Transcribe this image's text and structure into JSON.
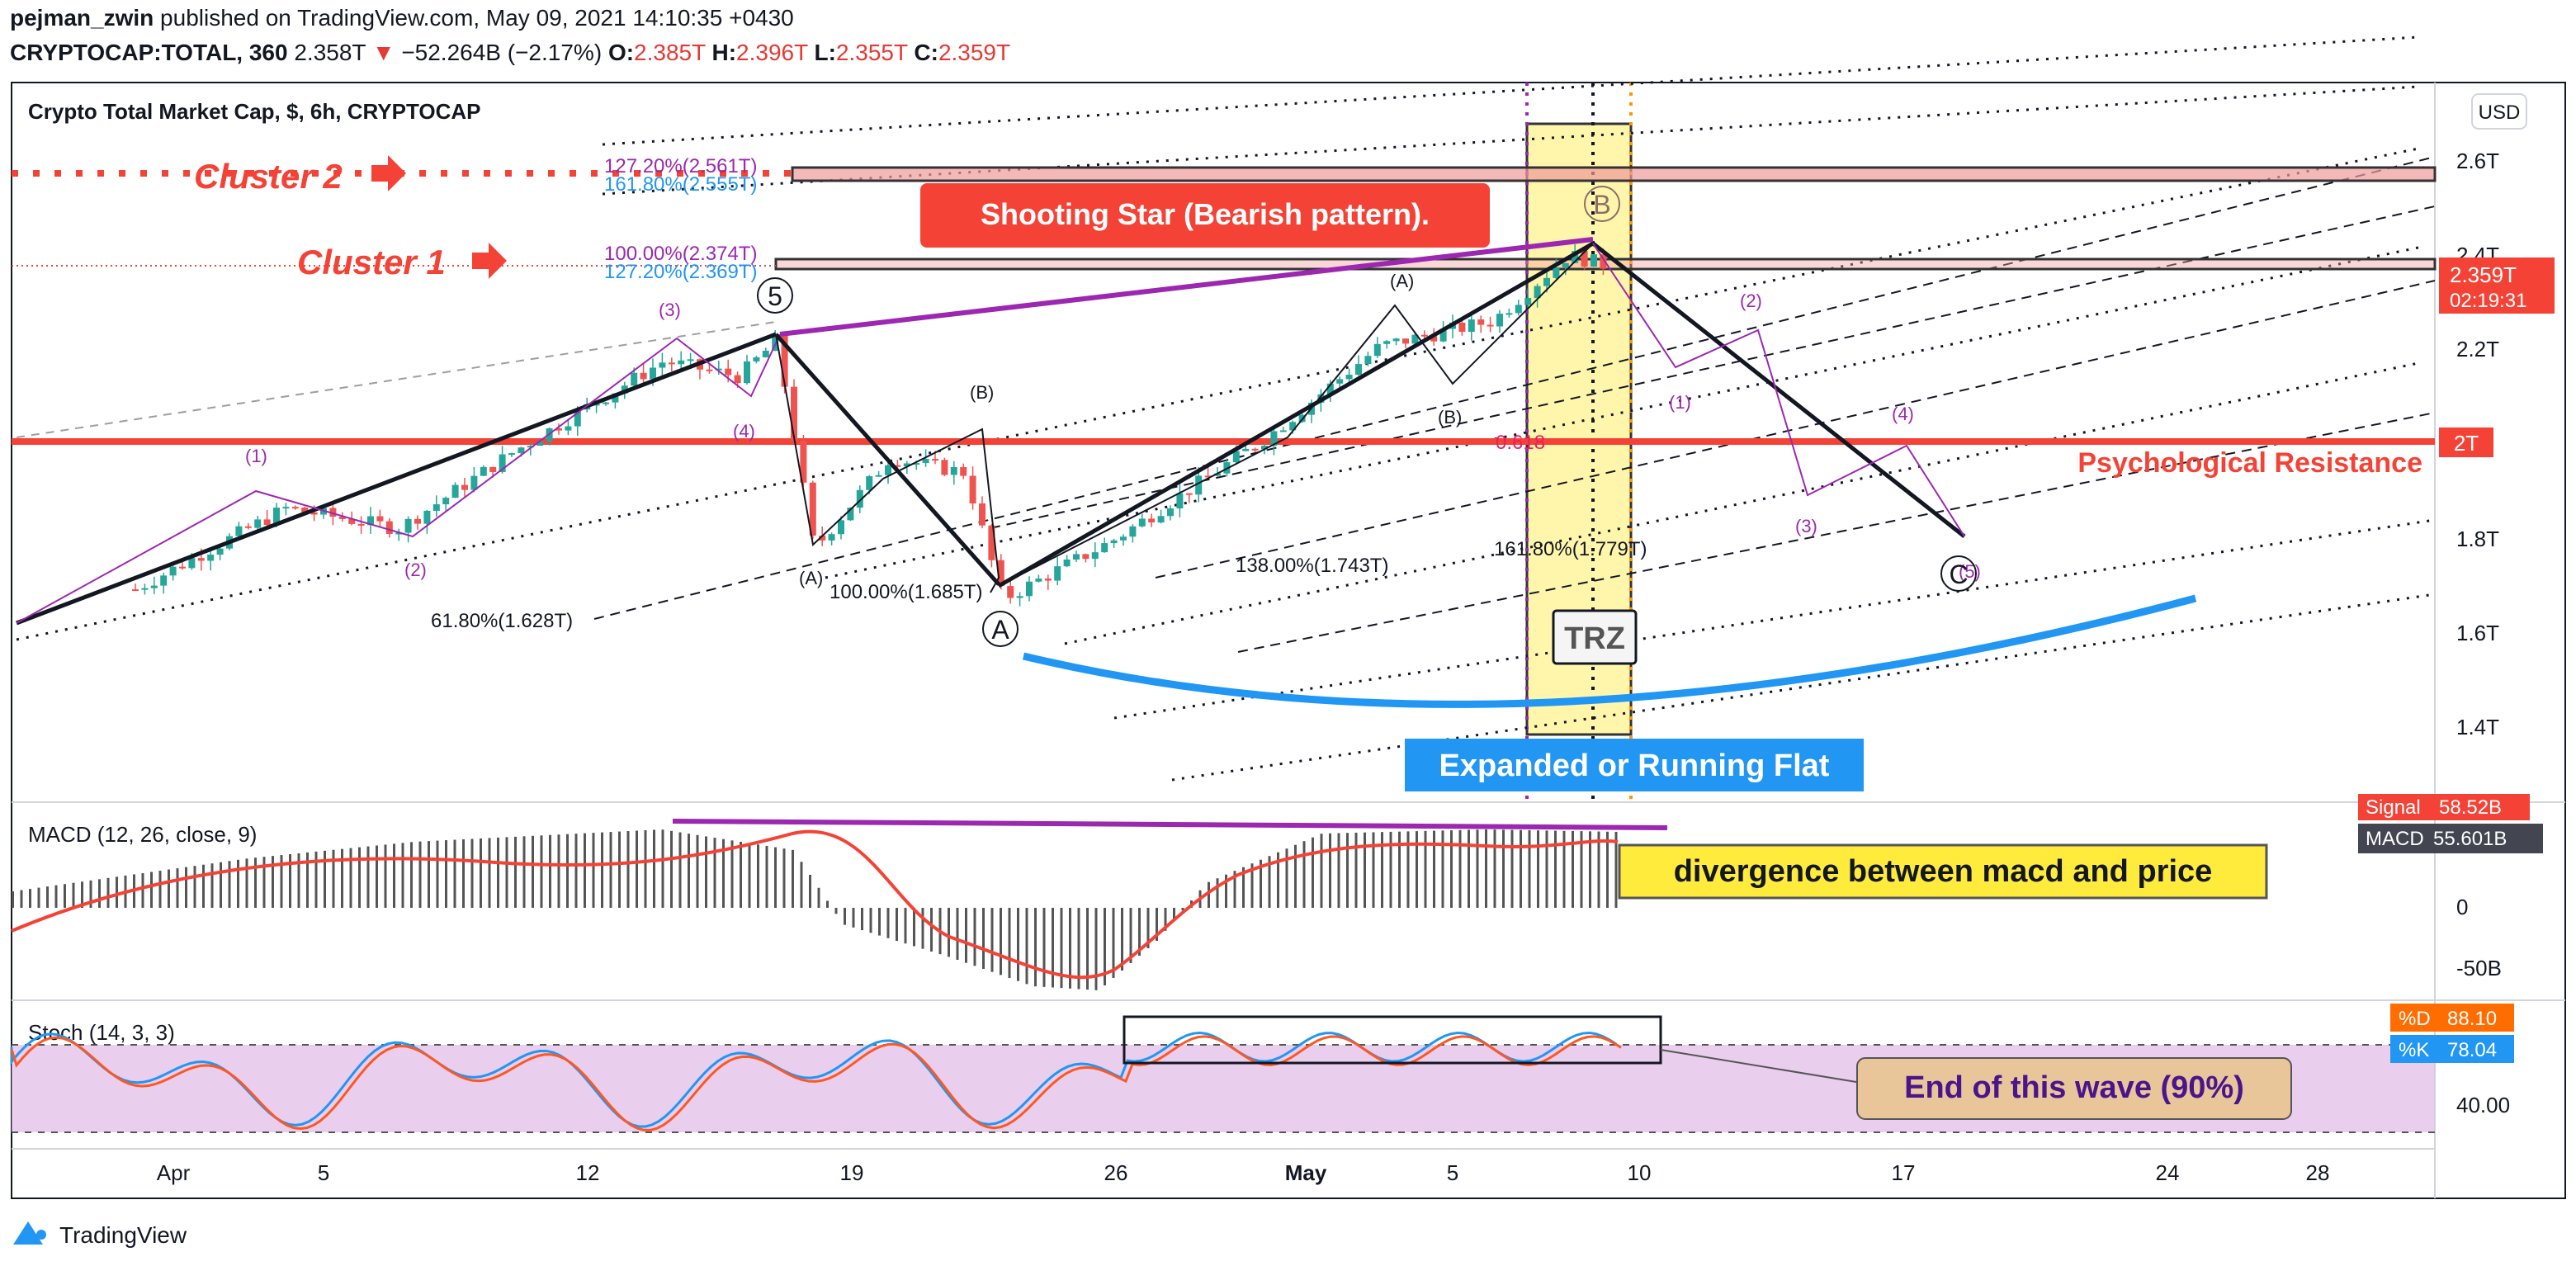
{
  "header": {
    "author": "pejman_zwin",
    "published_text": "published on TradingView.com, May 09, 2021 14:10:35 +0430",
    "symbol": "CRYPTOCAP:TOTAL, 360",
    "price": "2.358T",
    "change_arrow": "▼",
    "change": "−52.264B (−2.17%)",
    "o_label": "O:",
    "o": "2.385T",
    "h_label": "H:",
    "h": "2.396T",
    "l_label": "L:",
    "l": "2.355T",
    "c_label": "C:",
    "c": "2.359T"
  },
  "main_chart": {
    "title": "Crypto Total Market Cap, $, 6h, CRYPTOCAP",
    "currency_button": "USD",
    "price_ticks": [
      "2.6T",
      "2.4T",
      "2.2T",
      "2T",
      "1.8T",
      "1.6T",
      "1.4T"
    ],
    "current_price_label": "2.359T",
    "countdown": "02:19:31"
  },
  "annotations": {
    "cluster2": "Cluster 2",
    "cluster1": "Cluster 1",
    "shooting_star": "Shooting Star (Bearish pattern).",
    "psychological": "Psychological Resistance",
    "trz": "TRZ",
    "flat": "Expanded or Running Flat",
    "divergence": "divergence between macd and price",
    "end_wave": "End of this wave (90%)",
    "fib": {
      "c2a": "127.20%(2.561T)",
      "c2b": "161.80%(2.555T)",
      "c1a": "100.00%(2.374T)",
      "c1b": "127.20%(2.369T)",
      "f618": "61.80%(1.628T)",
      "f100": "100.00%(1.685T)",
      "f138": "138.00%(1.743T)",
      "f1618": "161.80%(1.779T)",
      "f0618": "0.618"
    },
    "waves": {
      "w1": "(1)",
      "w2": "(2)",
      "w3": "(3)",
      "w4": "(4)",
      "w5": "5",
      "A": "A",
      "B": "B",
      "C": "C",
      "a1": "(A)",
      "b1": "(B)",
      "a2": "(A)",
      "b2": "(B)",
      "p1": "(1)",
      "p2": "(2)",
      "p3": "(3)",
      "p4": "(4)",
      "p5": "(5)"
    }
  },
  "macd": {
    "title": "MACD (12, 26, close, 9)",
    "signal_label": "Signal",
    "signal_value": "58.52B",
    "macd_label": "MACD",
    "macd_value": "55.601B",
    "ticks": [
      "0",
      "-50B"
    ]
  },
  "stoch": {
    "title": "Stoch (14, 3, 3)",
    "d_label": "%D",
    "d_value": "88.10",
    "k_label": "%K",
    "k_value": "78.04",
    "ticks": [
      "40.00"
    ]
  },
  "time_axis": [
    "Apr",
    "5",
    "12",
    "19",
    "26",
    "May",
    "5",
    "10",
    "17",
    "24",
    "28"
  ],
  "footer": {
    "brand": "TradingView"
  },
  "colors": {
    "up": "#26a69a",
    "down": "#ef5350",
    "red_line": "#f44336",
    "purple": "#9c27b0",
    "blue_arc": "#2196f3",
    "trz": "#fff176",
    "stoch_band": "#e1bee7",
    "signal_line": "#ff5722"
  },
  "chart_data": {
    "type": "candlestick",
    "title": "Crypto Total Market Cap, $, 6h, CRYPTOCAP",
    "y_unit": "T (USD)",
    "ylim": [
      1.3,
      2.72
    ],
    "x_ticks": [
      "Apr",
      "5",
      "12",
      "19",
      "26",
      "May",
      "5",
      "10",
      "17",
      "24",
      "28"
    ],
    "horizontal_levels": {
      "psychological_resistance": 2.0,
      "cluster_1": 2.374,
      "cluster_2": 2.561
    },
    "price_path_approx": [
      {
        "date": "Mar 31",
        "close": 1.72
      },
      {
        "date": "Apr 4",
        "close": 1.88
      },
      {
        "date": "Apr 7",
        "close": 1.84
      },
      {
        "date": "Apr 10",
        "close": 1.99
      },
      {
        "date": "Apr 14",
        "close": 2.17
      },
      {
        "date": "Apr 16",
        "close": 2.14
      },
      {
        "date": "Apr 17",
        "close": 2.21
      },
      {
        "date": "Apr 18",
        "close": 1.8
      },
      {
        "date": "Apr 20",
        "close": 1.98
      },
      {
        "date": "Apr 22",
        "close": 1.95
      },
      {
        "date": "Apr 23",
        "close": 1.7
      },
      {
        "date": "Apr 26",
        "close": 1.82
      },
      {
        "date": "Apr 30",
        "close": 2.02
      },
      {
        "date": "May 3",
        "close": 2.2
      },
      {
        "date": "May 6",
        "close": 2.25
      },
      {
        "date": "May 8",
        "close": 2.38
      },
      {
        "date": "May 9",
        "close": 2.359
      }
    ],
    "macd": {
      "signal": 58.52,
      "macd": 55.601,
      "unit": "B"
    },
    "stoch": {
      "d": 88.1,
      "k": 78.04
    }
  }
}
